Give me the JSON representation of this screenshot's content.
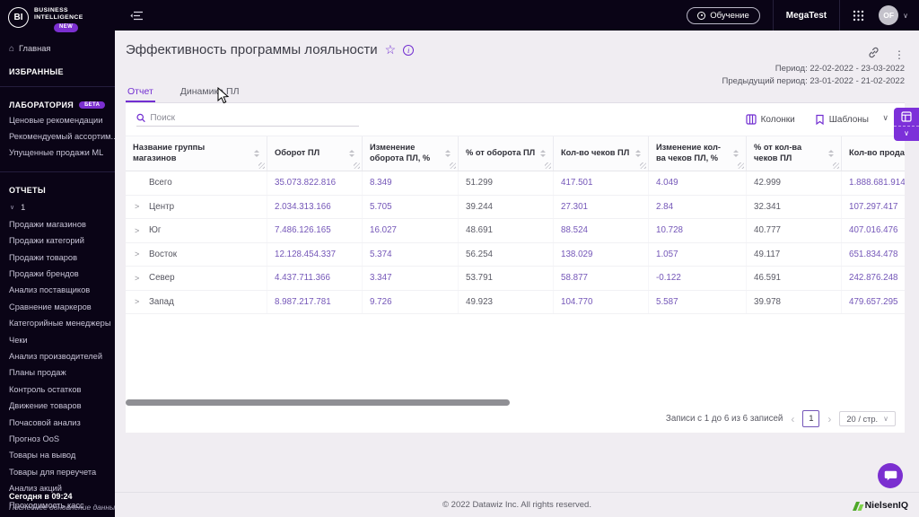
{
  "colors": {
    "accent": "#722ed1",
    "dark_bg": "#0a0416"
  },
  "brand": {
    "logo_text": "BI",
    "line1": "BUSINESS",
    "line2": "INTELLIGENCE",
    "badge": "NEW"
  },
  "topbar": {
    "training": "Обучение",
    "company": "MegaTest",
    "avatar": "OF"
  },
  "sidebar": {
    "home": "Главная",
    "favorites_header": "ИЗБРАННЫЕ",
    "lab": {
      "header": "ЛАБОРАТОРИЯ",
      "badge": "БЕТА",
      "items": [
        "Ценовые рекомендации",
        "Рекомендуемый ассортим...",
        "Упущенные продажи ML"
      ]
    },
    "reports_header": "ОТЧЕТЫ",
    "group_label": "1",
    "report_items": [
      "Продажи магазинов",
      "Продажи категорий",
      "Продажи товаров",
      "Продажи брендов",
      "Анализ поставщиков",
      "Сравнение маркеров",
      "Категорийные менеджеры",
      "Чеки",
      "Анализ производителей",
      "Планы продаж",
      "Контроль остатков",
      "Движение товаров",
      "Почасовой анализ",
      "Прогноз OoS",
      "Товары на вывод",
      "Товары для переучета",
      "Анализ акций",
      "Проходимость касс"
    ],
    "footer_time": "Сегодня в 09:24",
    "footer_note": "Последнее обновление данных"
  },
  "page": {
    "title": "Эффективность программы лояльности",
    "period": "Период: 22-02-2022 - 23-03-2022",
    "prev_period": "Предыдущий период: 23-01-2022 - 21-02-2022",
    "tabs": [
      {
        "label": "Отчет",
        "active": true
      },
      {
        "label": "Динамика ПЛ",
        "active": false
      }
    ]
  },
  "toolbar": {
    "search_placeholder": "Поиск",
    "columns": "Колонки",
    "templates": "Шаблоны"
  },
  "table": {
    "columns": [
      "Название группы магазинов",
      "Оборот ПЛ",
      "Изменение оборота ПЛ, %",
      "% от оборота ПЛ",
      "Кол-во чеков ПЛ",
      "Изменение кол-ва чеков ПЛ, %",
      "% от кол-ва чеков ПЛ",
      "Кол-во продаж ПЛ"
    ],
    "rows": [
      {
        "name": "Всего",
        "expandable": false,
        "values": [
          "35.073.822.816",
          "8.349",
          "51.299",
          "417.501",
          "4.049",
          "42.999",
          "1.888.681.914"
        ]
      },
      {
        "name": "Центр",
        "expandable": true,
        "values": [
          "2.034.313.166",
          "5.705",
          "39.244",
          "27.301",
          "2.84",
          "32.341",
          "107.297.417"
        ]
      },
      {
        "name": "Юг",
        "expandable": true,
        "values": [
          "7.486.126.165",
          "16.027",
          "48.691",
          "88.524",
          "10.728",
          "40.777",
          "407.016.476"
        ]
      },
      {
        "name": "Восток",
        "expandable": true,
        "values": [
          "12.128.454.337",
          "5.374",
          "56.254",
          "138.029",
          "1.057",
          "49.117",
          "651.834.478"
        ]
      },
      {
        "name": "Север",
        "expandable": true,
        "values": [
          "4.437.711.366",
          "3.347",
          "53.791",
          "58.877",
          "-0.122",
          "46.591",
          "242.876.248"
        ]
      },
      {
        "name": "Запад",
        "expandable": true,
        "values": [
          "8.987.217.781",
          "9.726",
          "49.923",
          "104.770",
          "5.587",
          "39.978",
          "479.657.295"
        ]
      }
    ]
  },
  "pagination": {
    "summary": "Записи с 1 до 6 из 6 записей",
    "prev": "‹",
    "next": "›",
    "page": "1",
    "page_size": "20 / стр."
  },
  "footer": {
    "copyright": "© 2022 Datawiz Inc. All rights reserved.",
    "partner_brand": "NielsenIQ"
  }
}
